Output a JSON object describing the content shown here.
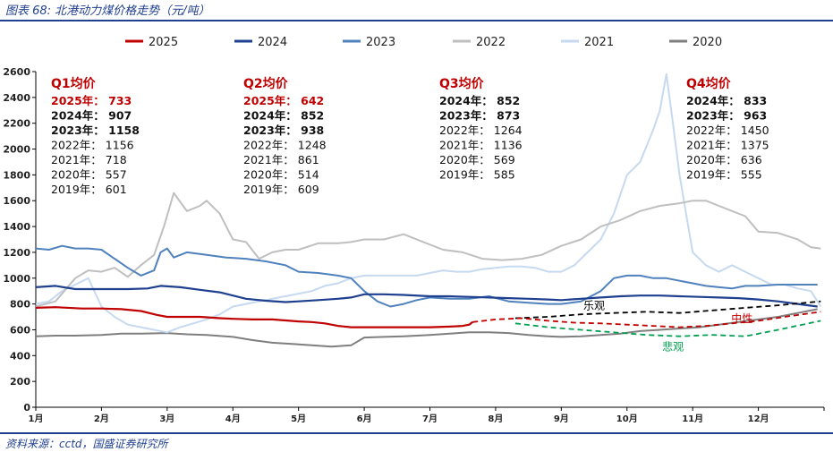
{
  "figure_title": "图表 68:  北港动力煤价格走势（元/吨）",
  "source": "资料来源：cctd，国盛证券研究所",
  "chart_data": {
    "type": "line",
    "title": "",
    "xlabel": "",
    "ylabel": "",
    "ylim": [
      0,
      2600
    ],
    "yticks": [
      0,
      200,
      400,
      600,
      800,
      1000,
      1200,
      1400,
      1600,
      1800,
      2000,
      2200,
      2400,
      2600
    ],
    "xlim": [
      1,
      13
    ],
    "months": [
      "1月",
      "2月",
      "3月",
      "4月",
      "5月",
      "6月",
      "7月",
      "8月",
      "9月",
      "10月",
      "11月",
      "12月"
    ],
    "grid": false,
    "legend_position": "top",
    "series": [
      {
        "name": "2025",
        "color": "#c00000",
        "width": 2.2,
        "x": [
          1.0,
          1.3,
          1.7,
          2.0,
          2.3,
          2.6,
          2.85,
          3.0,
          3.2,
          3.5,
          3.8,
          4.0,
          4.3,
          4.6,
          5.0,
          5.2,
          5.4,
          5.6,
          5.8,
          6.0,
          6.3,
          6.6,
          7.0,
          7.3,
          7.5,
          7.6,
          7.65
        ],
        "y": [
          770,
          775,
          765,
          765,
          760,
          745,
          715,
          700,
          700,
          700,
          690,
          685,
          680,
          680,
          665,
          660,
          650,
          630,
          620,
          620,
          620,
          620,
          620,
          625,
          630,
          640,
          660
        ]
      },
      {
        "name": "2024",
        "color": "#1f3f8f",
        "width": 2.2,
        "x": [
          1.0,
          1.3,
          1.6,
          2.0,
          2.4,
          2.7,
          2.9,
          3.2,
          3.5,
          3.8,
          4.2,
          4.5,
          4.8,
          5.0,
          5.3,
          5.6,
          5.8,
          6.0,
          6.3,
          6.6,
          7.0,
          7.3,
          7.6,
          7.9,
          8.2,
          8.5,
          8.8,
          9.0,
          9.3,
          9.6,
          9.9,
          10.2,
          10.5,
          10.8,
          11.1,
          11.4,
          11.7,
          12.0,
          12.3,
          12.6,
          12.9
        ],
        "y": [
          930,
          940,
          915,
          915,
          915,
          920,
          940,
          930,
          910,
          890,
          840,
          825,
          815,
          820,
          830,
          840,
          850,
          875,
          875,
          870,
          860,
          860,
          855,
          850,
          845,
          840,
          835,
          830,
          840,
          850,
          860,
          865,
          865,
          860,
          855,
          850,
          845,
          835,
          820,
          800,
          780
        ]
      },
      {
        "name": "2023",
        "color": "#4f81bd",
        "width": 2.0,
        "x": [
          1.0,
          1.2,
          1.4,
          1.6,
          1.8,
          2.0,
          2.2,
          2.4,
          2.6,
          2.8,
          2.9,
          3.0,
          3.1,
          3.3,
          3.6,
          3.9,
          4.2,
          4.5,
          4.8,
          5.0,
          5.3,
          5.6,
          5.8,
          6.0,
          6.2,
          6.4,
          6.6,
          6.8,
          7.0,
          7.3,
          7.6,
          7.9,
          8.2,
          8.5,
          8.8,
          9.0,
          9.3,
          9.6,
          9.8,
          10.0,
          10.2,
          10.4,
          10.6,
          10.8,
          11.0,
          11.2,
          11.4,
          11.6,
          11.8,
          12.0,
          12.3,
          12.6,
          12.9
        ],
        "y": [
          1230,
          1220,
          1250,
          1230,
          1230,
          1220,
          1150,
          1080,
          1020,
          1060,
          1200,
          1230,
          1160,
          1200,
          1180,
          1160,
          1150,
          1130,
          1100,
          1050,
          1040,
          1020,
          1000,
          900,
          820,
          780,
          800,
          830,
          850,
          840,
          840,
          860,
          820,
          810,
          800,
          800,
          820,
          900,
          1000,
          1020,
          1020,
          1000,
          1000,
          980,
          960,
          940,
          930,
          920,
          940,
          940,
          950,
          950,
          950
        ]
      },
      {
        "name": "2022",
        "color": "#bfbfbf",
        "width": 2.0,
        "x": [
          1.0,
          1.3,
          1.6,
          1.8,
          2.0,
          2.2,
          2.4,
          2.6,
          2.8,
          2.95,
          3.1,
          3.3,
          3.5,
          3.6,
          3.8,
          3.9,
          4.0,
          4.2,
          4.4,
          4.6,
          4.8,
          5.0,
          5.3,
          5.6,
          5.8,
          6.0,
          6.3,
          6.6,
          6.9,
          7.2,
          7.5,
          7.8,
          8.1,
          8.4,
          8.7,
          9.0,
          9.3,
          9.6,
          9.9,
          10.2,
          10.5,
          10.8,
          11.0,
          11.2,
          11.4,
          11.6,
          11.8,
          12.0,
          12.3,
          12.6,
          12.8,
          12.95
        ],
        "y": [
          780,
          820,
          1000,
          1060,
          1050,
          1080,
          1010,
          1100,
          1180,
          1400,
          1660,
          1520,
          1560,
          1600,
          1500,
          1400,
          1300,
          1280,
          1150,
          1200,
          1220,
          1220,
          1270,
          1270,
          1280,
          1300,
          1300,
          1340,
          1280,
          1220,
          1200,
          1150,
          1140,
          1150,
          1180,
          1250,
          1300,
          1400,
          1450,
          1520,
          1560,
          1580,
          1600,
          1600,
          1560,
          1520,
          1480,
          1360,
          1350,
          1300,
          1240,
          1230
        ]
      },
      {
        "name": "2021",
        "color": "#c6d9f0",
        "width": 2.0,
        "x": [
          1.0,
          1.2,
          1.4,
          1.6,
          1.8,
          2.0,
          2.2,
          2.4,
          2.6,
          2.8,
          3.0,
          3.2,
          3.4,
          3.6,
          3.8,
          4.0,
          4.2,
          4.4,
          4.6,
          4.8,
          5.0,
          5.2,
          5.4,
          5.6,
          5.8,
          6.0,
          6.2,
          6.4,
          6.6,
          6.8,
          7.0,
          7.2,
          7.4,
          7.6,
          7.8,
          8.0,
          8.2,
          8.4,
          8.6,
          8.8,
          9.0,
          9.2,
          9.4,
          9.6,
          9.8,
          10.0,
          10.2,
          10.4,
          10.5,
          10.6,
          10.7,
          10.8,
          10.9,
          11.0,
          11.1,
          11.2,
          11.4,
          11.6,
          11.8,
          12.0,
          12.2,
          12.4,
          12.6,
          12.8,
          12.95
        ],
        "y": [
          800,
          820,
          900,
          950,
          1000,
          780,
          700,
          640,
          620,
          600,
          580,
          620,
          650,
          680,
          720,
          780,
          800,
          820,
          840,
          860,
          880,
          900,
          940,
          960,
          1000,
          1020,
          1020,
          1020,
          1020,
          1020,
          1040,
          1060,
          1050,
          1050,
          1070,
          1080,
          1090,
          1090,
          1080,
          1050,
          1050,
          1100,
          1200,
          1300,
          1500,
          1800,
          1900,
          2150,
          2300,
          2580,
          2200,
          1800,
          1500,
          1200,
          1150,
          1100,
          1050,
          1100,
          1050,
          1000,
          950,
          950,
          920,
          900,
          780
        ]
      },
      {
        "name": "2020",
        "color": "#7f7f7f",
        "width": 2.0,
        "x": [
          1.0,
          1.3,
          1.6,
          2.0,
          2.3,
          2.6,
          3.0,
          3.3,
          3.6,
          4.0,
          4.3,
          4.6,
          4.9,
          5.2,
          5.5,
          5.8,
          6.0,
          6.3,
          6.6,
          7.0,
          7.3,
          7.6,
          7.9,
          8.2,
          8.5,
          8.8,
          9.0,
          9.3,
          9.6,
          9.9,
          10.2,
          10.5,
          10.8,
          11.1,
          11.4,
          11.7,
          12.0,
          12.3,
          12.6,
          12.9
        ],
        "y": [
          550,
          555,
          555,
          560,
          570,
          570,
          575,
          565,
          560,
          545,
          520,
          500,
          490,
          480,
          470,
          480,
          540,
          545,
          550,
          560,
          570,
          580,
          580,
          575,
          560,
          550,
          545,
          550,
          560,
          570,
          590,
          600,
          610,
          620,
          640,
          660,
          680,
          700,
          730,
          760
        ]
      }
    ],
    "forecasts": [
      {
        "name": "乐观",
        "color": "#000000",
        "x": [
          8.3,
          8.8,
          9.3,
          9.8,
          10.3,
          10.8,
          11.3,
          11.8,
          12.3,
          12.95
        ],
        "y": [
          690,
          700,
          720,
          730,
          740,
          730,
          750,
          770,
          790,
          820
        ]
      },
      {
        "name": "中性",
        "color": "#c00000",
        "x": [
          7.65,
          8.0,
          8.4,
          8.8,
          9.2,
          9.6,
          10.0,
          10.4,
          10.8,
          11.2,
          11.6,
          12.0,
          12.4,
          12.95
        ],
        "y": [
          660,
          680,
          690,
          670,
          655,
          650,
          640,
          630,
          620,
          630,
          650,
          670,
          700,
          740
        ]
      },
      {
        "name": "悲观",
        "color": "#00a050",
        "x": [
          8.3,
          8.8,
          9.3,
          9.8,
          10.3,
          10.8,
          11.3,
          11.8,
          12.3,
          12.95
        ],
        "y": [
          650,
          620,
          600,
          580,
          560,
          550,
          560,
          550,
          600,
          670
        ]
      }
    ],
    "annotations": [
      {
        "title": "Q1均价",
        "lines": [
          {
            "text": "2025年：  733",
            "style": "red"
          },
          {
            "text": "2024年：  907",
            "style": "bold"
          },
          {
            "text": "2023年：  1158",
            "style": "bold"
          },
          {
            "text": "2022年：  1156",
            "style": "normal"
          },
          {
            "text": "2021年：  718",
            "style": "normal"
          },
          {
            "text": "2020年：  557",
            "style": "normal"
          },
          {
            "text": "2019年：  601",
            "style": "normal"
          }
        ]
      },
      {
        "title": "Q2均价",
        "lines": [
          {
            "text": "2025年：  642",
            "style": "red"
          },
          {
            "text": "2024年：  852",
            "style": "bold"
          },
          {
            "text": "2023年：  938",
            "style": "bold"
          },
          {
            "text": "2022年：  1248",
            "style": "normal"
          },
          {
            "text": "2021年：  861",
            "style": "normal"
          },
          {
            "text": "2020年：  514",
            "style": "normal"
          },
          {
            "text": "2019年：  609",
            "style": "normal"
          }
        ]
      },
      {
        "title": "Q3均价",
        "lines": [
          {
            "text": "2024年：  852",
            "style": "bold"
          },
          {
            "text": "2023年：  873",
            "style": "bold"
          },
          {
            "text": "2022年：  1264",
            "style": "normal"
          },
          {
            "text": "2021年：  1136",
            "style": "normal"
          },
          {
            "text": "2020年：  569",
            "style": "normal"
          },
          {
            "text": "2019年：  585",
            "style": "normal"
          }
        ]
      },
      {
        "title": "Q4均价",
        "lines": [
          {
            "text": "2024年：  833",
            "style": "bold"
          },
          {
            "text": "2023年：  963",
            "style": "bold"
          },
          {
            "text": "2022年：  1450",
            "style": "normal"
          },
          {
            "text": "2021年：  1375",
            "style": "normal"
          },
          {
            "text": "2020年：  636",
            "style": "normal"
          },
          {
            "text": "2019年：  555",
            "style": "normal"
          }
        ]
      }
    ]
  }
}
